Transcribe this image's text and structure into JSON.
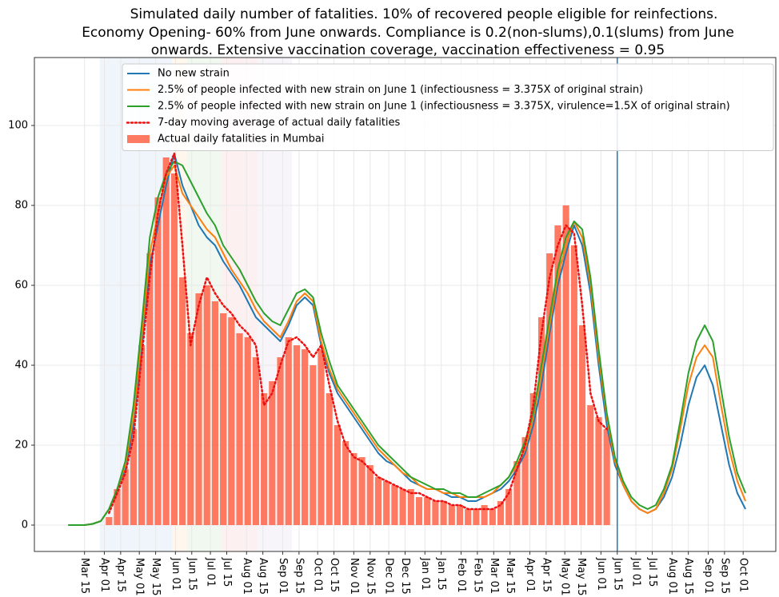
{
  "chart_data": {
    "type": "line",
    "title": [
      "Simulated daily number of fatalities. 10% of recovered people eligible for reinfections.",
      "Economy Opening- 60% from June onwards. Compliance is 0.2(non-slums),0.1(slums) from June",
      "onwards. Extensive vaccination coverage, vaccination effectiveness = 0.95"
    ],
    "x": [
      0,
      7,
      14,
      21,
      28,
      35,
      42,
      49,
      56,
      63,
      70,
      77,
      84,
      91,
      98,
      105,
      112,
      119,
      126,
      133,
      140,
      147,
      154,
      161,
      168,
      175,
      182,
      189,
      196,
      203,
      210,
      217,
      224,
      231,
      238,
      245,
      252,
      259,
      266,
      273,
      280,
      287,
      294,
      301,
      308,
      315,
      322,
      329,
      336,
      343,
      350,
      357,
      364,
      371,
      378,
      385,
      392,
      399,
      406,
      413,
      420,
      427,
      434,
      441,
      448,
      455,
      462,
      469,
      476,
      483,
      490,
      497,
      504,
      511,
      518,
      525,
      532,
      539,
      546,
      553,
      560,
      567,
      574,
      581
    ],
    "xlim": [
      -29,
      607
    ],
    "xticks": [
      {
        "value": 14,
        "label": "Mar 15"
      },
      {
        "value": 31,
        "label": "Apr 01"
      },
      {
        "value": 45,
        "label": "Apr 15"
      },
      {
        "value": 61,
        "label": "May 01"
      },
      {
        "value": 75,
        "label": "May 15"
      },
      {
        "value": 92,
        "label": "Jun 01"
      },
      {
        "value": 106,
        "label": "Jun 15"
      },
      {
        "value": 122,
        "label": "Jul 01"
      },
      {
        "value": 136,
        "label": "Jul 15"
      },
      {
        "value": 153,
        "label": "Aug 01"
      },
      {
        "value": 167,
        "label": "Aug 15"
      },
      {
        "value": 184,
        "label": "Sep 01"
      },
      {
        "value": 198,
        "label": "Sep 15"
      },
      {
        "value": 214,
        "label": "Oct 01"
      },
      {
        "value": 228,
        "label": "Oct 15"
      },
      {
        "value": 245,
        "label": "Nov 01"
      },
      {
        "value": 259,
        "label": "Nov 15"
      },
      {
        "value": 275,
        "label": "Dec 01"
      },
      {
        "value": 289,
        "label": "Dec 15"
      },
      {
        "value": 306,
        "label": "Jan 01"
      },
      {
        "value": 320,
        "label": "Jan 15"
      },
      {
        "value": 337,
        "label": "Feb 01"
      },
      {
        "value": 351,
        "label": "Feb 15"
      },
      {
        "value": 365,
        "label": "Mar 01"
      },
      {
        "value": 379,
        "label": "Mar 15"
      },
      {
        "value": 396,
        "label": "Apr 01"
      },
      {
        "value": 410,
        "label": "Apr 15"
      },
      {
        "value": 426,
        "label": "May 01"
      },
      {
        "value": 440,
        "label": "May 15"
      },
      {
        "value": 457,
        "label": "Jun 01"
      },
      {
        "value": 471,
        "label": "Jun 15"
      },
      {
        "value": 487,
        "label": "Jul 01"
      },
      {
        "value": 501,
        "label": "Jul 15"
      },
      {
        "value": 518,
        "label": "Aug 01"
      },
      {
        "value": 532,
        "label": "Aug 15"
      },
      {
        "value": 549,
        "label": "Sep 01"
      },
      {
        "value": 563,
        "label": "Sep 15"
      },
      {
        "value": 579,
        "label": "Oct 01"
      }
    ],
    "ylim": [
      -6.6,
      117
    ],
    "yticks": [
      0,
      20,
      40,
      60,
      80,
      100
    ],
    "grid": true,
    "legend": "upper right",
    "spans": [
      {
        "x": [
          27,
          89
        ],
        "color": "#1f77b4"
      },
      {
        "x": [
          89,
          102
        ],
        "color": "#ff7f0e"
      },
      {
        "x": [
          102,
          132
        ],
        "color": "#2ca02c"
      },
      {
        "x": [
          132,
          162
        ],
        "color": "#d62728"
      },
      {
        "x": [
          162,
          192
        ],
        "color": "#9467bd"
      }
    ],
    "vline": 471,
    "series": [
      {
        "name": "No new strain",
        "color": "#1f77b4",
        "values": [
          0,
          0,
          0,
          0.3,
          1,
          4,
          9,
          14,
          25,
          45,
          65,
          75,
          85,
          93,
          85,
          80,
          75,
          72,
          70,
          66,
          63,
          60,
          56,
          52,
          50,
          48,
          46,
          50,
          55,
          57,
          55,
          45,
          38,
          33,
          30,
          27,
          24,
          21,
          18,
          16,
          15,
          13,
          11,
          10,
          9,
          9,
          8,
          7,
          7,
          6,
          6,
          7,
          8,
          9,
          11,
          14,
          18,
          25,
          35,
          48,
          60,
          68,
          75,
          70,
          58,
          40,
          25,
          15,
          10,
          6,
          4,
          3,
          4,
          7,
          12,
          20,
          30,
          37,
          40,
          35,
          25,
          15,
          8,
          4
        ]
      },
      {
        "name": "2.5% of people infected with new strain on June 1 (infectiousness = 3.375X of original strain)",
        "color": "#ff7f0e",
        "values": [
          0,
          0,
          0,
          0.3,
          1,
          4,
          9,
          15,
          27,
          47,
          68,
          78,
          87,
          90,
          83,
          80,
          77,
          74,
          72,
          68,
          64,
          61,
          58,
          54,
          51,
          49,
          47,
          51,
          56,
          58,
          56,
          46,
          39,
          34,
          31,
          28,
          25,
          22,
          19,
          17,
          15,
          13,
          12,
          10,
          9,
          9,
          8,
          8,
          7,
          7,
          7,
          7,
          8,
          10,
          12,
          15,
          19,
          27,
          38,
          50,
          62,
          70,
          76,
          72,
          60,
          42,
          27,
          16,
          10,
          6,
          4,
          3,
          4,
          8,
          14,
          24,
          35,
          42,
          45,
          42,
          30,
          19,
          11,
          6
        ]
      },
      {
        "name": "2.5% of people infected with new strain on June 1 (infectiousness = 3.375X, virulence=1.5X of original strain)",
        "color": "#2ca02c",
        "values": [
          0,
          0,
          0,
          0.3,
          1,
          4,
          9,
          16,
          30,
          50,
          72,
          82,
          88,
          91,
          90,
          86,
          82,
          78,
          75,
          70,
          67,
          64,
          60,
          56,
          53,
          51,
          50,
          54,
          58,
          59,
          57,
          48,
          41,
          35,
          32,
          29,
          26,
          23,
          20,
          18,
          16,
          14,
          12,
          11,
          10,
          9,
          9,
          8,
          8,
          7,
          7,
          8,
          9,
          10,
          12,
          16,
          21,
          28,
          40,
          52,
          64,
          72,
          76,
          74,
          62,
          44,
          28,
          17,
          11,
          7,
          5,
          4,
          5,
          9,
          15,
          26,
          38,
          46,
          50,
          46,
          34,
          22,
          13,
          8
        ]
      },
      {
        "name": "7-day moving average of actual daily fatalities",
        "color": "#ee1111",
        "style": "dotted",
        "values": [
          null,
          null,
          null,
          null,
          null,
          3,
          8,
          13,
          22,
          42,
          62,
          78,
          88,
          93,
          70,
          45,
          55,
          62,
          58,
          55,
          53,
          50,
          48,
          45,
          30,
          33,
          40,
          46,
          47,
          45,
          42,
          45,
          35,
          26,
          20,
          17,
          16,
          14,
          12,
          11,
          10,
          9,
          8,
          8,
          7,
          6,
          6,
          5,
          5,
          4,
          4,
          4,
          4,
          5,
          8,
          14,
          20,
          30,
          48,
          62,
          70,
          75,
          73,
          55,
          33,
          26,
          24,
          null,
          null,
          null,
          null,
          null,
          null,
          null,
          null,
          null,
          null,
          null,
          null,
          null,
          null,
          null,
          null,
          null
        ]
      },
      {
        "name": "Actual daily fatalities in Mumbai",
        "color": "#ff6347",
        "type": "bar",
        "values": [
          null,
          null,
          null,
          null,
          null,
          2,
          9,
          14,
          24,
          45,
          68,
          82,
          92,
          88,
          62,
          48,
          58,
          60,
          56,
          53,
          52,
          48,
          47,
          42,
          33,
          36,
          42,
          47,
          45,
          44,
          40,
          44,
          33,
          25,
          21,
          18,
          17,
          15,
          12,
          11,
          10,
          9,
          9,
          7,
          7,
          6,
          6,
          5,
          5,
          4,
          4,
          5,
          4,
          6,
          9,
          16,
          22,
          33,
          52,
          68,
          75,
          80,
          70,
          50,
          30,
          27,
          24,
          null,
          null,
          null,
          null,
          null,
          null,
          null,
          null,
          null,
          null,
          null,
          null,
          null,
          null,
          null,
          null,
          null
        ]
      }
    ]
  }
}
